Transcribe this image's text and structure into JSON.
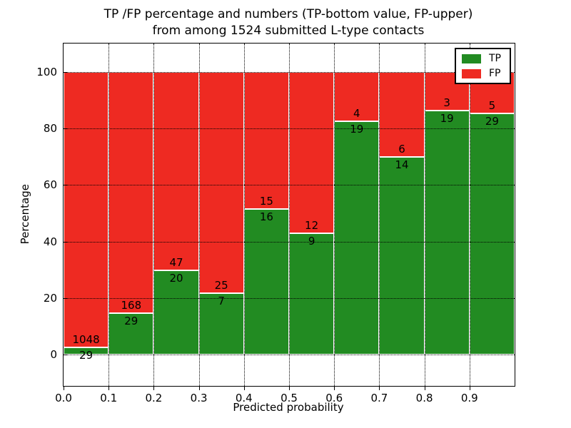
{
  "title": {
    "line1": "TP /FP percentage and numbers (TP-bottom value, FP-upper)",
    "line2": "from among 1524 submitted L-type contacts"
  },
  "axes": {
    "xlabel": "Predicted probability",
    "ylabel": "Percentage",
    "xtick_labels": [
      "0.0",
      "0.1",
      "0.2",
      "0.3",
      "0.4",
      "0.5",
      "0.6",
      "0.7",
      "0.8",
      "0.9"
    ],
    "xtick_values": [
      0.0,
      0.1,
      0.2,
      0.3,
      0.4,
      0.5,
      0.6,
      0.7,
      0.8,
      0.9
    ],
    "ytick_labels": [
      "0",
      "20",
      "40",
      "60",
      "80",
      "100"
    ],
    "ytick_values": [
      0,
      20,
      40,
      60,
      80,
      100
    ],
    "xlim": [
      0.0,
      1.0
    ],
    "ylim": [
      -11,
      110
    ]
  },
  "legend": {
    "items": [
      {
        "label": "TP",
        "color": "#228b22"
      },
      {
        "label": "FP",
        "color": "#ee2a22"
      }
    ]
  },
  "colors": {
    "tp_green": "#228b22",
    "fp_red": "#ee2a22",
    "grid": "#000000",
    "text": "#000000",
    "background": "#ffffff"
  },
  "chart_data": {
    "type": "bar",
    "variant": "stacked-normalized-percent",
    "title": "TP /FP percentage and numbers (TP-bottom value, FP-upper) from among 1524 submitted L-type contacts",
    "xlabel": "Predicted probability",
    "ylabel": "Percentage",
    "total_contacts": 1524,
    "bin_width": 0.1,
    "categories": [
      "0.0-0.1",
      "0.1-0.2",
      "0.2-0.3",
      "0.3-0.4",
      "0.4-0.5",
      "0.5-0.6",
      "0.6-0.7",
      "0.7-0.8",
      "0.8-0.9",
      "0.9-1.0"
    ],
    "bin_starts": [
      0.0,
      0.1,
      0.2,
      0.3,
      0.4,
      0.5,
      0.6,
      0.7,
      0.8,
      0.9
    ],
    "series": [
      {
        "name": "TP",
        "color": "#228b22",
        "counts": [
          29,
          29,
          20,
          7,
          16,
          9,
          19,
          14,
          19,
          29
        ]
      },
      {
        "name": "FP",
        "color": "#ee2a22",
        "counts": [
          1048,
          168,
          47,
          25,
          15,
          12,
          4,
          6,
          3,
          5
        ]
      }
    ],
    "tp_percent": [
      2.7,
      14.7,
      29.9,
      21.9,
      51.6,
      42.9,
      82.6,
      70.0,
      86.4,
      85.3
    ],
    "each_bar_total_percent": 100,
    "grid": "dotted",
    "legend_position": "upper right",
    "xlim": [
      0.0,
      1.0
    ],
    "ylim": [
      -11,
      110
    ]
  }
}
